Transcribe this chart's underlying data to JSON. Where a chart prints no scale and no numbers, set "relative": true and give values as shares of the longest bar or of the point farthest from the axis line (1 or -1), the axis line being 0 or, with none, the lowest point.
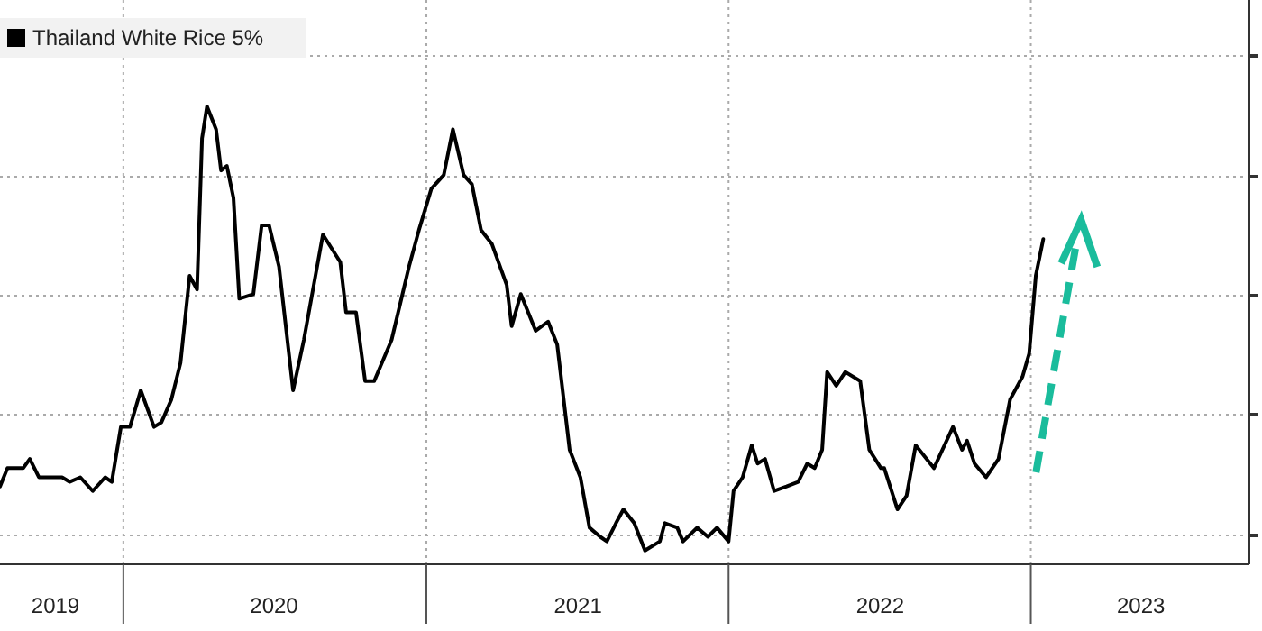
{
  "chart_data": {
    "type": "line",
    "relative": true,
    "legend": "top left",
    "grid": true,
    "xlim": [
      "2019-08-05",
      "2023-09-22"
    ],
    "xticks": [
      {
        "value": "2019-10-11",
        "label": "2019"
      },
      {
        "value": "2020-01-01",
        "label": null
      },
      {
        "value": "2020-07-01",
        "label": "2020"
      },
      {
        "value": "2021-01-01",
        "label": null
      },
      {
        "value": "2021-07-03",
        "label": "2021"
      },
      {
        "value": "2022-01-01",
        "label": null
      },
      {
        "value": "2022-07-03",
        "label": "2022"
      },
      {
        "value": "2023-01-01",
        "label": null
      },
      {
        "value": "2023-05-14",
        "label": "2023"
      }
    ],
    "x": [
      "2019-08-05",
      "2019-08-14",
      "2019-09-02",
      "2019-09-10",
      "2019-09-21",
      "2019-10-19",
      "2019-10-28",
      "2019-11-10",
      "2019-11-25",
      "2019-12-10",
      "2019-12-18",
      "2019-12-29",
      "2020-01-09",
      "2020-01-22",
      "2020-02-07",
      "2020-02-16",
      "2020-02-28",
      "2020-03-10",
      "2020-03-21",
      "2020-03-30",
      "2020-04-05",
      "2020-04-11",
      "2020-04-22",
      "2020-04-28",
      "2020-05-05",
      "2020-05-13",
      "2020-05-20",
      "2020-06-06",
      "2020-06-16",
      "2020-06-25",
      "2020-07-07",
      "2020-07-24",
      "2020-08-06",
      "2020-08-29",
      "2020-09-19",
      "2020-09-26",
      "2020-10-08",
      "2020-10-19",
      "2020-10-30",
      "2020-11-20",
      "2020-12-11",
      "2020-12-23",
      "2021-01-07",
      "2021-01-22",
      "2021-02-02",
      "2021-02-15",
      "2021-02-25",
      "2021-03-08",
      "2021-03-21",
      "2021-04-08",
      "2021-04-14",
      "2021-04-25",
      "2021-05-13",
      "2021-05-28",
      "2021-06-08",
      "2021-06-23",
      "2021-07-06",
      "2021-07-17",
      "2021-07-30",
      "2021-08-07",
      "2021-08-18",
      "2021-08-27",
      "2021-09-09",
      "2021-09-22",
      "2021-10-10",
      "2021-10-16",
      "2021-10-31",
      "2021-11-07",
      "2021-11-24",
      "2021-12-07",
      "2021-12-18",
      "2022-01-01",
      "2022-01-07",
      "2022-01-18",
      "2022-01-29",
      "2022-02-05",
      "2022-02-14",
      "2022-02-25",
      "2022-03-12",
      "2022-03-26",
      "2022-04-06",
      "2022-04-15",
      "2022-04-24",
      "2022-04-30",
      "2022-05-11",
      "2022-05-22",
      "2022-06-09",
      "2022-06-20",
      "2022-07-04",
      "2022-07-08",
      "2022-07-24",
      "2022-08-04",
      "2022-08-15",
      "2022-09-06",
      "2022-09-29",
      "2022-10-10",
      "2022-10-16",
      "2022-10-25",
      "2022-11-08",
      "2022-11-23",
      "2022-12-07",
      "2022-12-22",
      "2022-12-30",
      "2023-01-07",
      "2023-01-16"
    ],
    "series": [
      {
        "name": "Thailand White Rice 5%",
        "color": "#000000",
        "values": [
          0.17,
          0.21,
          0.21,
          0.23,
          0.19,
          0.19,
          0.18,
          0.19,
          0.16,
          0.19,
          0.18,
          0.3,
          0.3,
          0.38,
          0.3,
          0.31,
          0.36,
          0.44,
          0.63,
          0.6,
          0.93,
          1,
          0.95,
          0.86,
          0.87,
          0.8,
          0.58,
          0.59,
          0.74,
          0.74,
          0.65,
          0.38,
          0.49,
          0.72,
          0.66,
          0.55,
          0.55,
          0.4,
          0.4,
          0.49,
          0.65,
          0.73,
          0.82,
          0.85,
          0.95,
          0.85,
          0.83,
          0.73,
          0.7,
          0.61,
          0.52,
          0.59,
          0.51,
          0.53,
          0.48,
          0.25,
          0.19,
          0.08,
          0.06,
          0.05,
          0.09,
          0.12,
          0.09,
          0.03,
          0.05,
          0.09,
          0.08,
          0.05,
          0.08,
          0.06,
          0.08,
          0.05,
          0.16,
          0.19,
          0.26,
          0.22,
          0.23,
          0.16,
          0.17,
          0.18,
          0.22,
          0.21,
          0.25,
          0.42,
          0.39,
          0.42,
          0.4,
          0.25,
          0.21,
          0.21,
          0.12,
          0.15,
          0.26,
          0.21,
          0.3,
          0.25,
          0.27,
          0.22,
          0.19,
          0.23,
          0.36,
          0.41,
          0.46,
          0.63,
          0.71
        ]
      }
    ]
  }
}
